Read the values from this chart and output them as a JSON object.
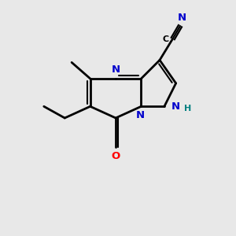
{
  "background_color": "#e8e8e8",
  "bond_color": "#000000",
  "nitrogen_color": "#0000cc",
  "oxygen_color": "#ff0000",
  "carbon_color": "#000000",
  "nh_color": "#008080",
  "figsize": [
    3.0,
    3.0
  ],
  "dpi": 100,
  "xlim": [
    0,
    10
  ],
  "ylim": [
    0,
    10
  ]
}
